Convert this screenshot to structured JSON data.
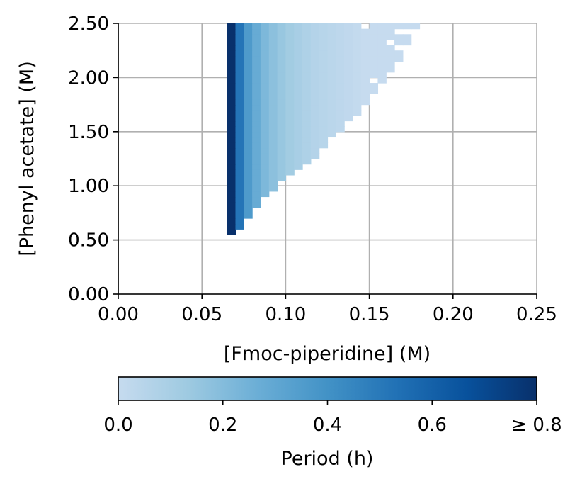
{
  "chart_data": {
    "type": "heatmap",
    "xlabel": "[Fmoc-piperidine] (M)",
    "ylabel": "[Phenyl acetate] (M)",
    "xlim": [
      0.0,
      0.25
    ],
    "ylim": [
      0.0,
      2.5
    ],
    "xticks": [
      "0.00",
      "0.05",
      "0.10",
      "0.15",
      "0.20",
      "0.25"
    ],
    "yticks": [
      "0.00",
      "0.50",
      "1.00",
      "1.50",
      "2.00",
      "2.50"
    ],
    "grid": true,
    "colormap": "Blues",
    "colormap_stops": [
      "#c6dbef",
      "#9ecae1",
      "#6baed6",
      "#4292c6",
      "#2171b5",
      "#08519c",
      "#08306b"
    ],
    "x_cell_width": 0.005,
    "y_cell_height": 0.05,
    "region": [
      {
        "y": 0.55,
        "x_max": 0.07
      },
      {
        "y": 0.6,
        "x_max": 0.075
      },
      {
        "y": 0.65,
        "x_max": 0.075
      },
      {
        "y": 0.7,
        "x_max": 0.08
      },
      {
        "y": 0.75,
        "x_max": 0.08
      },
      {
        "y": 0.8,
        "x_max": 0.085
      },
      {
        "y": 0.85,
        "x_max": 0.085
      },
      {
        "y": 0.9,
        "x_max": 0.09
      },
      {
        "y": 0.95,
        "x_max": 0.095
      },
      {
        "y": 1.0,
        "x_max": 0.095
      },
      {
        "y": 1.05,
        "x_max": 0.1
      },
      {
        "y": 1.1,
        "x_max": 0.105
      },
      {
        "y": 1.15,
        "x_max": 0.11
      },
      {
        "y": 1.2,
        "x_max": 0.115
      },
      {
        "y": 1.25,
        "x_max": 0.12
      },
      {
        "y": 1.3,
        "x_max": 0.12
      },
      {
        "y": 1.35,
        "x_max": 0.125
      },
      {
        "y": 1.4,
        "x_max": 0.125
      },
      {
        "y": 1.45,
        "x_max": 0.13
      },
      {
        "y": 1.5,
        "x_max": 0.135
      },
      {
        "y": 1.55,
        "x_max": 0.135
      },
      {
        "y": 1.6,
        "x_max": 0.14
      },
      {
        "y": 1.65,
        "x_max": 0.145
      },
      {
        "y": 1.7,
        "x_max": 0.145
      },
      {
        "y": 1.75,
        "x_max": 0.15
      },
      {
        "y": 1.8,
        "x_max": 0.15
      },
      {
        "y": 1.85,
        "x_max": 0.155
      },
      {
        "y": 1.9,
        "x_max": 0.155
      },
      {
        "y": 1.95,
        "x_max": 0.16
      },
      {
        "y": 2.0,
        "x_max": 0.16
      },
      {
        "y": 2.05,
        "x_max": 0.165
      },
      {
        "y": 2.1,
        "x_max": 0.165
      },
      {
        "y": 2.15,
        "x_max": 0.17
      },
      {
        "y": 2.2,
        "x_max": 0.17
      },
      {
        "y": 2.25,
        "x_max": 0.17
      },
      {
        "y": 2.3,
        "x_max": 0.175
      },
      {
        "y": 2.35,
        "x_max": 0.175
      },
      {
        "y": 2.4,
        "x_max": 0.175
      },
      {
        "y": 2.45,
        "x_max": 0.18
      }
    ],
    "x_min": 0.065,
    "column_periods": [
      {
        "x": 0.065,
        "period": 0.8
      },
      {
        "x": 0.07,
        "period": 0.52
      },
      {
        "x": 0.075,
        "period": 0.36
      },
      {
        "x": 0.08,
        "period": 0.28
      },
      {
        "x": 0.085,
        "period": 0.22
      },
      {
        "x": 0.09,
        "period": 0.18
      },
      {
        "x": 0.095,
        "period": 0.15
      },
      {
        "x": 0.1,
        "period": 0.12
      },
      {
        "x": 0.105,
        "period": 0.1
      },
      {
        "x": 0.11,
        "period": 0.08
      },
      {
        "x": 0.115,
        "period": 0.06
      },
      {
        "x": 0.12,
        "period": 0.05
      },
      {
        "x": 0.125,
        "period": 0.04
      },
      {
        "x": 0.13,
        "period": 0.03
      },
      {
        "x": 0.135,
        "period": 0.02
      },
      {
        "x": 0.14,
        "period": 0.01
      },
      {
        "x": 0.145,
        "period": 0.0
      }
    ],
    "missing_cells": [
      {
        "x": 0.145,
        "y": 2.45
      },
      {
        "x": 0.165,
        "y": 2.4
      },
      {
        "x": 0.17,
        "y": 2.4
      },
      {
        "x": 0.16,
        "y": 2.3
      },
      {
        "x": 0.165,
        "y": 2.25
      },
      {
        "x": 0.15,
        "y": 1.95
      }
    ],
    "colorbar": {
      "label": "Period (h)",
      "range": [
        0.0,
        0.8
      ],
      "ticks": [
        0.0,
        0.2,
        0.4,
        0.6,
        0.8
      ],
      "tick_labels": [
        "0.0",
        "0.2",
        "0.4",
        "0.6",
        "≥ 0.8"
      ],
      "orientation": "horizontal"
    }
  }
}
